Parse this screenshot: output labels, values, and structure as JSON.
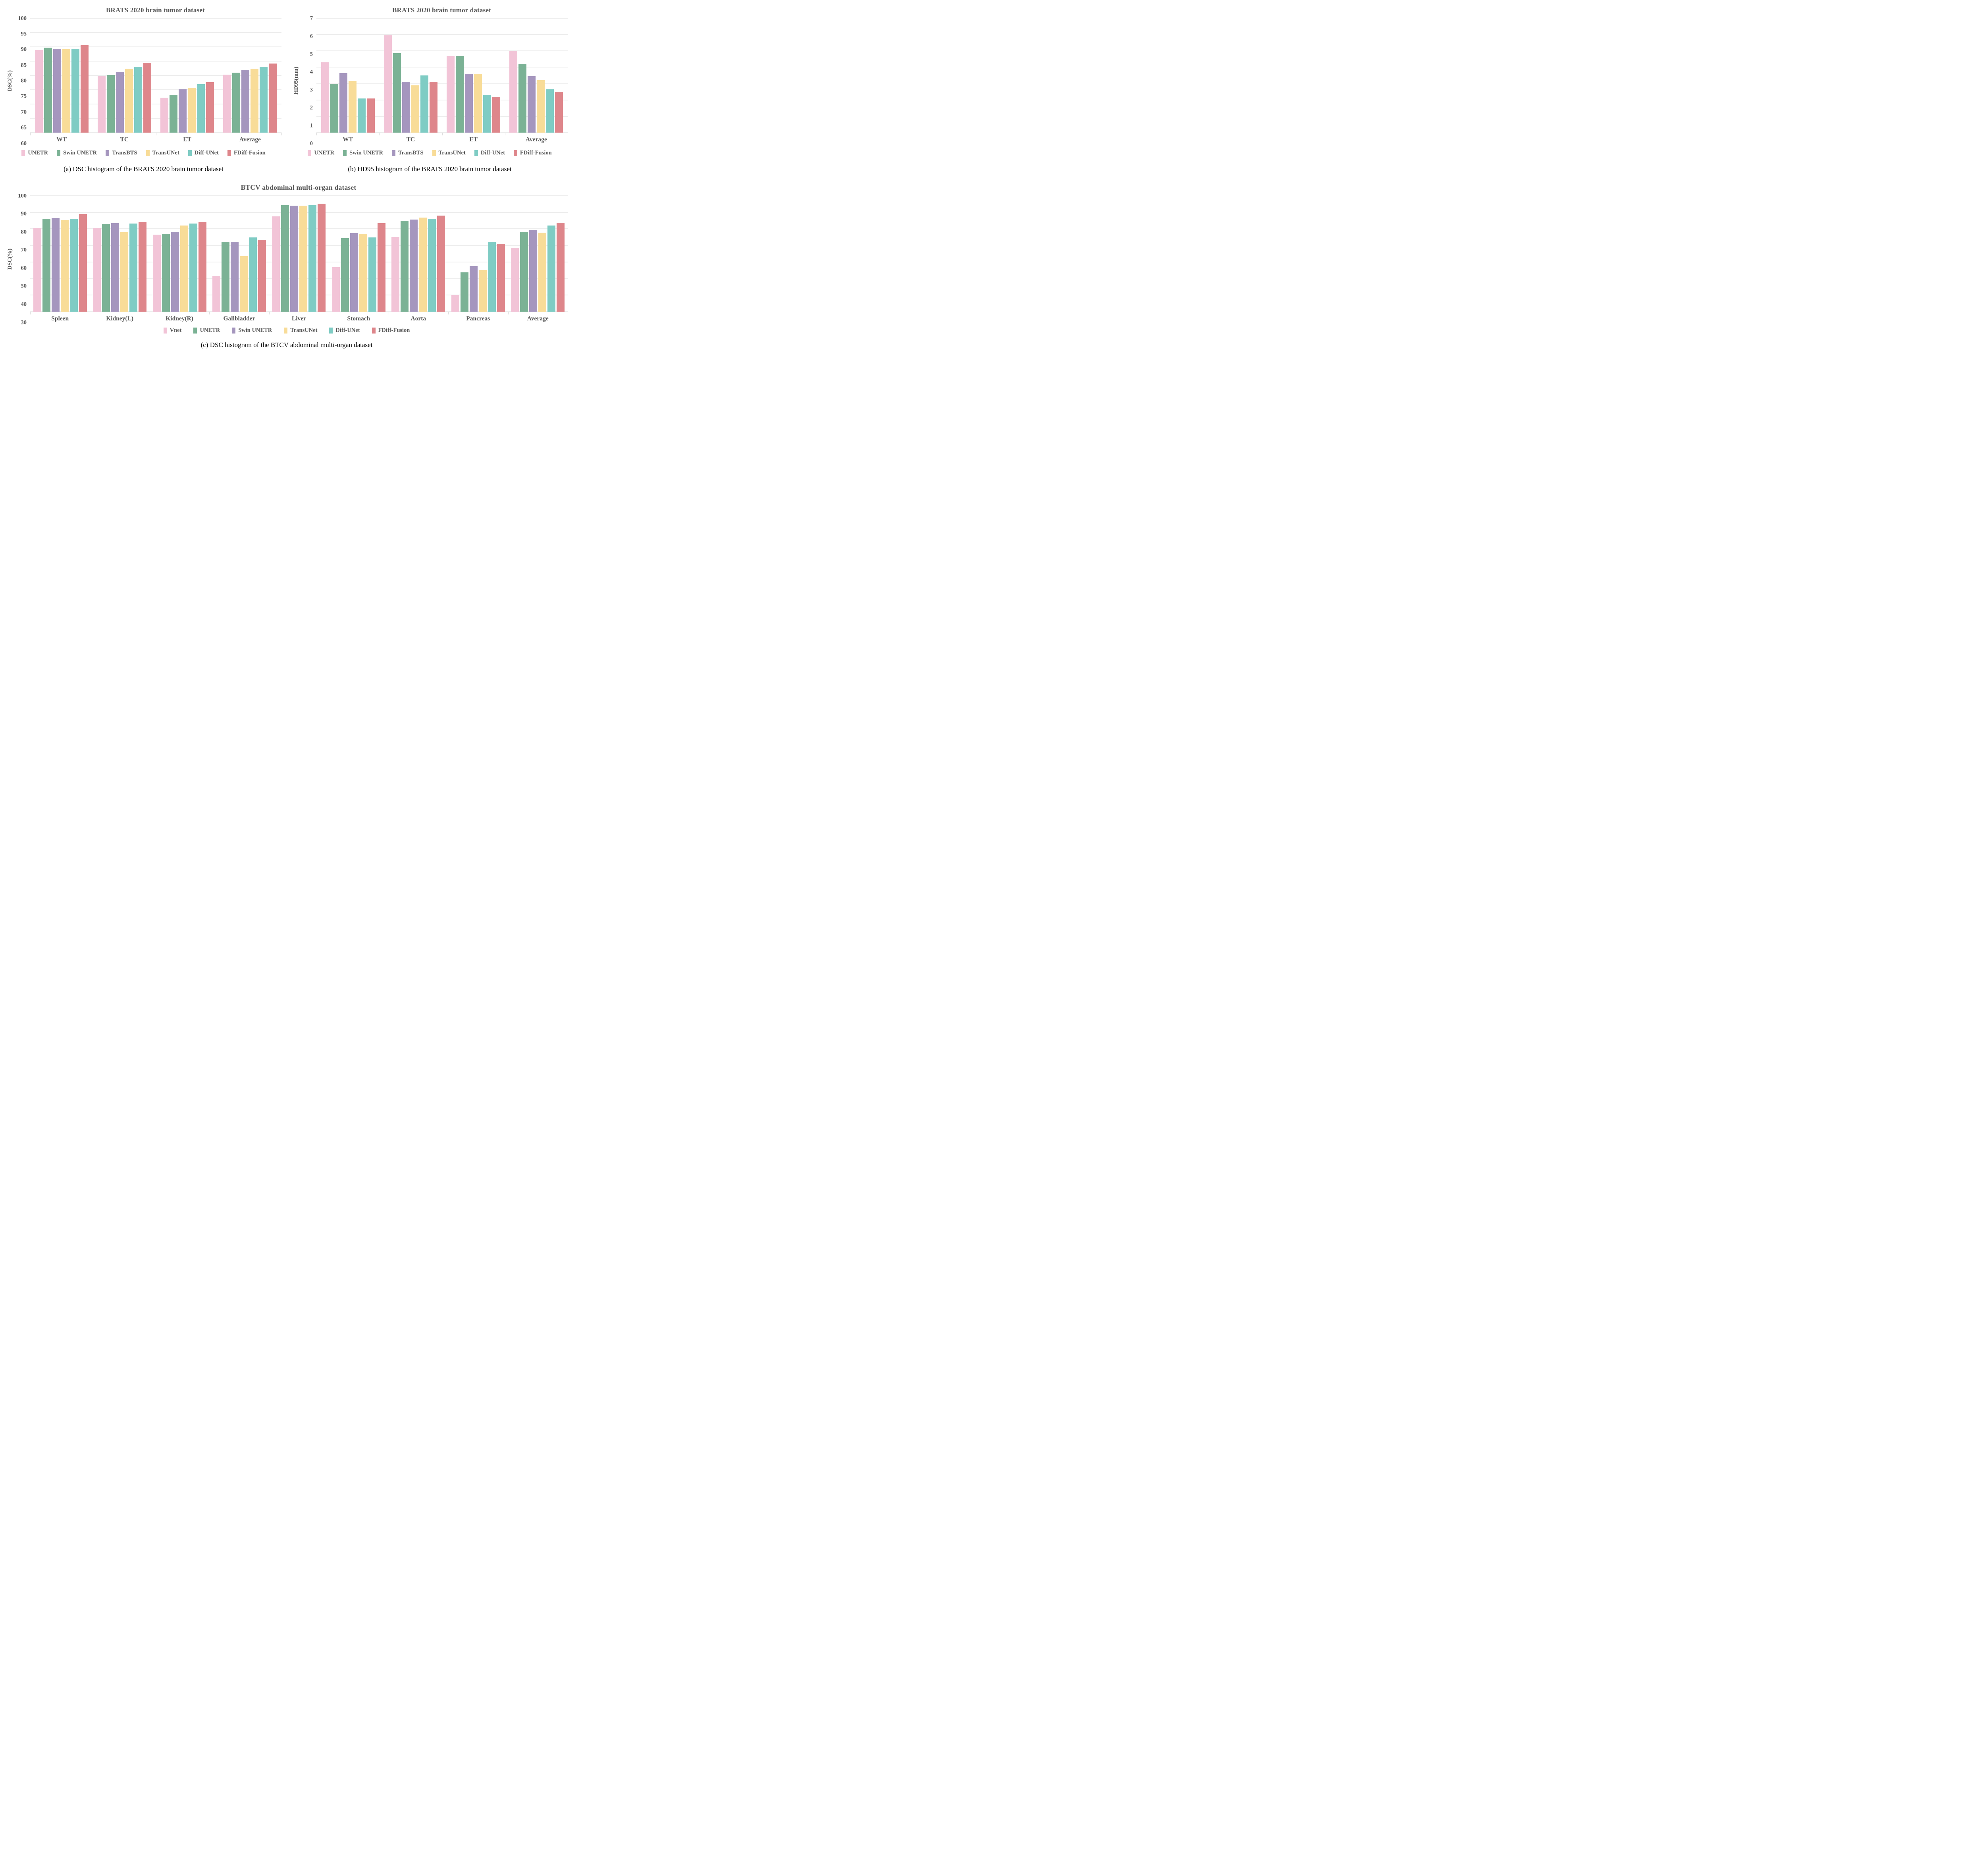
{
  "page": {
    "background": "#ffffff"
  },
  "styles": {
    "text_color": "#595959",
    "caption_color": "#000000",
    "gridline_color": "#DBDBDB",
    "series_colors": [
      "#F2C4D7",
      "#7BB295",
      "#A596BE",
      "#F8DC98",
      "#7FCCC4",
      "#DE868B"
    ]
  },
  "chart_data": [
    {
      "id": "a",
      "type": "bar",
      "title": "BRATS 2020 brain tumor dataset",
      "xlabel": "",
      "ylabel": "DSC(%)",
      "ylim": [
        60,
        100
      ],
      "ystep": 5,
      "grid": true,
      "legend_position": "bottom",
      "categories": [
        "WT",
        "TC",
        "ET",
        "Average"
      ],
      "series": [
        {
          "name": "UNETR",
          "values": [
            88.9,
            79.9,
            72.2,
            80.3
          ]
        },
        {
          "name": "Swin UNETR",
          "values": [
            89.7,
            80.2,
            73.2,
            81.0
          ]
        },
        {
          "name": "TransBTS",
          "values": [
            89.3,
            81.2,
            75.1,
            81.9
          ]
        },
        {
          "name": "TransUNet",
          "values": [
            89.2,
            82.4,
            75.7,
            82.4
          ]
        },
        {
          "name": "Diff-UNet",
          "values": [
            89.3,
            83.1,
            76.9,
            83.1
          ]
        },
        {
          "name": "FDiff-Fusion",
          "values": [
            90.5,
            84.4,
            77.6,
            84.2
          ]
        }
      ],
      "caption": "(a) DSC histogram of the BRATS 2020 brain tumor dataset"
    },
    {
      "id": "b",
      "type": "bar",
      "title": "BRATS 2020 brain tumor dataset",
      "xlabel": "",
      "ylabel": "HD95(mm)",
      "ylim": [
        0,
        7
      ],
      "ystep": 1,
      "grid": true,
      "legend_position": "bottom",
      "categories": [
        "WT",
        "TC",
        "ET",
        "Average"
      ],
      "series": [
        {
          "name": "UNETR",
          "values": [
            4.3,
            5.95,
            4.7,
            5.0
          ]
        },
        {
          "name": "Swin UNETR",
          "values": [
            3.0,
            4.85,
            4.7,
            4.2
          ]
        },
        {
          "name": "TransBTS",
          "values": [
            3.65,
            3.1,
            3.6,
            3.45
          ]
        },
        {
          "name": "TransUNet",
          "values": [
            3.15,
            2.9,
            3.6,
            3.2
          ]
        },
        {
          "name": "Diff-UNet",
          "values": [
            2.1,
            3.5,
            2.3,
            2.65
          ]
        },
        {
          "name": "FDiff-Fusion",
          "values": [
            2.1,
            3.1,
            2.2,
            2.5
          ]
        }
      ],
      "caption": "(b) HD95 histogram of the BRATS 2020 brain tumor dataset"
    },
    {
      "id": "c",
      "type": "bar",
      "title": "BTCV abdominal multi-organ dataset",
      "xlabel": "",
      "ylabel": "DSC(%)",
      "ylim": [
        30,
        100
      ],
      "ystep": 10,
      "grid": true,
      "legend_position": "bottom",
      "categories": [
        "Spleen",
        "Kidney(L)",
        "Kidney(R)",
        "Gallbladder",
        "Liver",
        "Stomach",
        "Aorta",
        "Pancreas",
        "Average"
      ],
      "series": [
        {
          "name": "Vnet",
          "values": [
            80.5,
            80.7,
            76.5,
            51.5,
            87.6,
            56.8,
            75.1,
            40.0,
            68.7
          ]
        },
        {
          "name": "UNETR",
          "values": [
            86.0,
            83.0,
            77.0,
            72.2,
            94.3,
            74.4,
            84.8,
            53.7,
            78.3
          ]
        },
        {
          "name": "Swin UNETR",
          "values": [
            86.5,
            83.5,
            78.3,
            72.2,
            94.0,
            77.4,
            85.6,
            57.5,
            79.4
          ]
        },
        {
          "name": "TransUNet",
          "values": [
            85.5,
            78.0,
            82.1,
            63.6,
            93.9,
            76.9,
            86.7,
            55.2,
            77.8
          ]
        },
        {
          "name": "Diff-UNet",
          "values": [
            86.2,
            83.2,
            83.3,
            74.9,
            94.3,
            74.8,
            86.2,
            72.1,
            82.0
          ]
        },
        {
          "name": "FDiff-Fusion",
          "values": [
            88.9,
            84.1,
            84.2,
            73.4,
            95.3,
            83.5,
            88.1,
            71.0,
            83.6
          ]
        }
      ],
      "caption": "(c) DSC histogram of the BTCV abdominal multi-organ dataset"
    }
  ]
}
